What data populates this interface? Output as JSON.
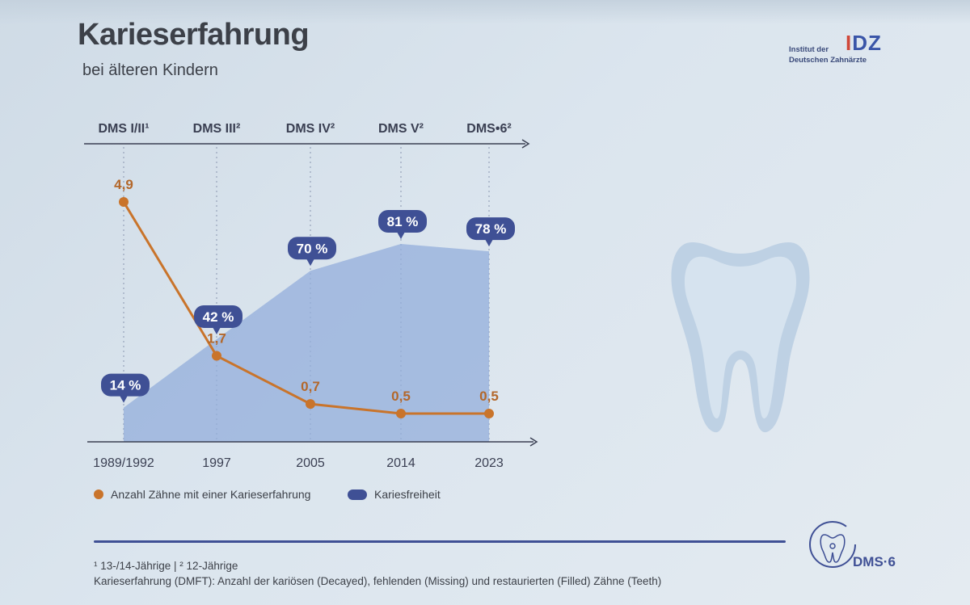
{
  "title": "Karieserfahrung",
  "subtitle": "bei älteren Kindern",
  "logo": {
    "line1": "Institut der",
    "line2": "Deutschen Zahnärzte",
    "mark_bar": "I",
    "mark_rest": "DZ"
  },
  "chart_data": {
    "type": "line",
    "x": [
      "1989/1992",
      "1997",
      "2005",
      "2014",
      "2023"
    ],
    "studies": [
      "DMS I/II¹",
      "DMS III²",
      "DMS IV²",
      "DMS V²",
      "DMS•6²"
    ],
    "series": [
      {
        "name": "Anzahl Zähne mit einer Karieserfahrung",
        "type": "line",
        "values": [
          4.9,
          1.7,
          0.7,
          0.5,
          0.5
        ],
        "labels": [
          "4,9",
          "1,7",
          "0,7",
          "0,5",
          "0,5"
        ],
        "color": "#c9742b"
      },
      {
        "name": "Kariesfreiheit",
        "type": "area",
        "values": [
          14,
          42,
          70,
          81,
          78
        ],
        "labels": [
          "14 %",
          "42 %",
          "70 %",
          "81 %",
          "78 %"
        ],
        "color": "#3f5095"
      }
    ]
  },
  "legend": {
    "line_label": "Anzahl Zähne mit einer Karieserfahrung",
    "area_label": "Kariesfreiheit"
  },
  "footnote": "¹ 13-/14-Jährige | ² 12-Jährige",
  "footnote_definition": "Karieserfahrung (DMFT): Anzahl der kariösen (Decayed), fehlenden (Missing) und restaurierten (Filled) Zähne (Teeth)",
  "brand": "DMS·6"
}
